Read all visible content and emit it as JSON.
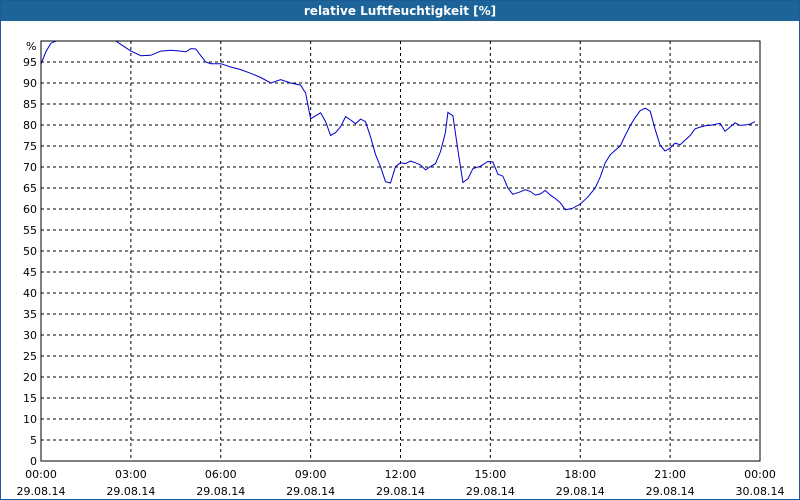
{
  "window": {
    "title": "relative Luftfeuchtigkeit [%]"
  },
  "colors": {
    "titlebar": "#1c6499",
    "line": "#0000cc",
    "grid": "#000000"
  },
  "chart_data": {
    "type": "line",
    "title": "relative Luftfeuchtigkeit [%]",
    "ylabel": "%",
    "ylim": [
      0,
      100
    ],
    "xlim": [
      "2014-08-29 00:00",
      "2014-08-30 00:00"
    ],
    "grid": true,
    "yticks": [
      0,
      5,
      10,
      15,
      20,
      25,
      30,
      35,
      40,
      45,
      50,
      55,
      60,
      65,
      70,
      75,
      80,
      85,
      90,
      95
    ],
    "xticks": [
      {
        "time": "00:00",
        "date": "29.08.14"
      },
      {
        "time": "03:00",
        "date": "29.08.14"
      },
      {
        "time": "06:00",
        "date": "29.08.14"
      },
      {
        "time": "09:00",
        "date": "29.08.14"
      },
      {
        "time": "12:00",
        "date": "29.08.14"
      },
      {
        "time": "15:00",
        "date": "29.08.14"
      },
      {
        "time": "18:00",
        "date": "29.08.14"
      },
      {
        "time": "21:00",
        "date": "29.08.14"
      },
      {
        "time": "00:00",
        "date": "30.08.14"
      }
    ],
    "series": [
      {
        "points": [
          [
            "00:00",
            94.5
          ],
          [
            "00:10",
            97.5
          ],
          [
            "00:20",
            99.5
          ],
          [
            "00:30",
            100
          ],
          [
            "02:30",
            100
          ],
          [
            "02:40",
            99.2
          ],
          [
            "03:00",
            97.6
          ],
          [
            "03:20",
            96.5
          ],
          [
            "03:40",
            96.6
          ],
          [
            "04:00",
            97.6
          ],
          [
            "04:20",
            97.8
          ],
          [
            "04:40",
            97.6
          ],
          [
            "04:50",
            97.4
          ],
          [
            "05:00",
            98.2
          ],
          [
            "05:10",
            98.1
          ],
          [
            "05:20",
            96.5
          ],
          [
            "05:30",
            95.0
          ],
          [
            "05:40",
            94.6
          ],
          [
            "06:00",
            94.6
          ],
          [
            "06:20",
            93.8
          ],
          [
            "06:40",
            93.2
          ],
          [
            "07:00",
            92.3
          ],
          [
            "07:20",
            91.3
          ],
          [
            "07:40",
            90.0
          ],
          [
            "08:00",
            90.8
          ],
          [
            "08:20",
            90.0
          ],
          [
            "08:40",
            89.5
          ],
          [
            "08:50",
            87.6
          ],
          [
            "09:00",
            81.5
          ],
          [
            "09:10",
            82.2
          ],
          [
            "09:20",
            82.9
          ],
          [
            "09:30",
            80.8
          ],
          [
            "09:40",
            77.5
          ],
          [
            "09:50",
            78.2
          ],
          [
            "10:00",
            79.6
          ],
          [
            "10:10",
            82.0
          ],
          [
            "10:20",
            81.2
          ],
          [
            "10:30",
            80.3
          ],
          [
            "10:40",
            81.4
          ],
          [
            "10:50",
            80.8
          ],
          [
            "11:00",
            77.2
          ],
          [
            "11:10",
            73.0
          ],
          [
            "11:20",
            70.1
          ],
          [
            "11:30",
            66.5
          ],
          [
            "11:40",
            66.2
          ],
          [
            "11:50",
            70.1
          ],
          [
            "12:00",
            71.0
          ],
          [
            "12:10",
            70.8
          ],
          [
            "12:20",
            71.4
          ],
          [
            "12:30",
            71.0
          ],
          [
            "12:40",
            70.5
          ],
          [
            "12:50",
            69.3
          ],
          [
            "13:00",
            70.1
          ],
          [
            "13:10",
            70.8
          ],
          [
            "13:20",
            73.6
          ],
          [
            "13:30",
            78.2
          ],
          [
            "13:35",
            83.0
          ],
          [
            "13:45",
            82.2
          ],
          [
            "13:55",
            74.0
          ],
          [
            "14:05",
            66.3
          ],
          [
            "14:15",
            67.2
          ],
          [
            "14:25",
            69.6
          ],
          [
            "14:40",
            70.2
          ],
          [
            "14:55",
            71.3
          ],
          [
            "15:05",
            71.2
          ],
          [
            "15:15",
            68.3
          ],
          [
            "15:25",
            67.8
          ],
          [
            "15:35",
            65.0
          ],
          [
            "15:45",
            63.5
          ],
          [
            "16:00",
            64.1
          ],
          [
            "16:10",
            64.6
          ],
          [
            "16:20",
            64.2
          ],
          [
            "16:30",
            63.3
          ],
          [
            "16:40",
            63.6
          ],
          [
            "16:50",
            64.4
          ],
          [
            "17:00",
            63.3
          ],
          [
            "17:10",
            62.5
          ],
          [
            "17:20",
            61.5
          ],
          [
            "17:30",
            59.8
          ],
          [
            "17:45",
            60.2
          ],
          [
            "18:00",
            61.2
          ],
          [
            "18:15",
            62.8
          ],
          [
            "18:30",
            65.0
          ],
          [
            "18:40",
            67.6
          ],
          [
            "18:50",
            71.0
          ],
          [
            "19:00",
            72.9
          ],
          [
            "19:10",
            74.0
          ],
          [
            "19:20",
            75.0
          ],
          [
            "19:30",
            77.5
          ],
          [
            "19:40",
            79.8
          ],
          [
            "19:50",
            81.8
          ],
          [
            "20:00",
            83.4
          ],
          [
            "20:10",
            84.0
          ],
          [
            "20:20",
            83.3
          ],
          [
            "20:30",
            79.0
          ],
          [
            "20:40",
            75.2
          ],
          [
            "20:50",
            73.8
          ],
          [
            "21:00",
            74.5
          ],
          [
            "21:10",
            75.7
          ],
          [
            "21:20",
            75.3
          ],
          [
            "21:30",
            76.4
          ],
          [
            "21:40",
            77.5
          ],
          [
            "21:50",
            79.1
          ],
          [
            "22:00",
            79.5
          ],
          [
            "22:10",
            79.8
          ],
          [
            "22:20",
            79.9
          ],
          [
            "22:40",
            80.4
          ],
          [
            "22:50",
            78.5
          ],
          [
            "23:00",
            79.5
          ],
          [
            "23:10",
            80.5
          ],
          [
            "23:20",
            79.9
          ],
          [
            "23:30",
            80.0
          ],
          [
            "23:40",
            80.2
          ],
          [
            "23:50",
            80.8
          ]
        ]
      }
    ]
  }
}
